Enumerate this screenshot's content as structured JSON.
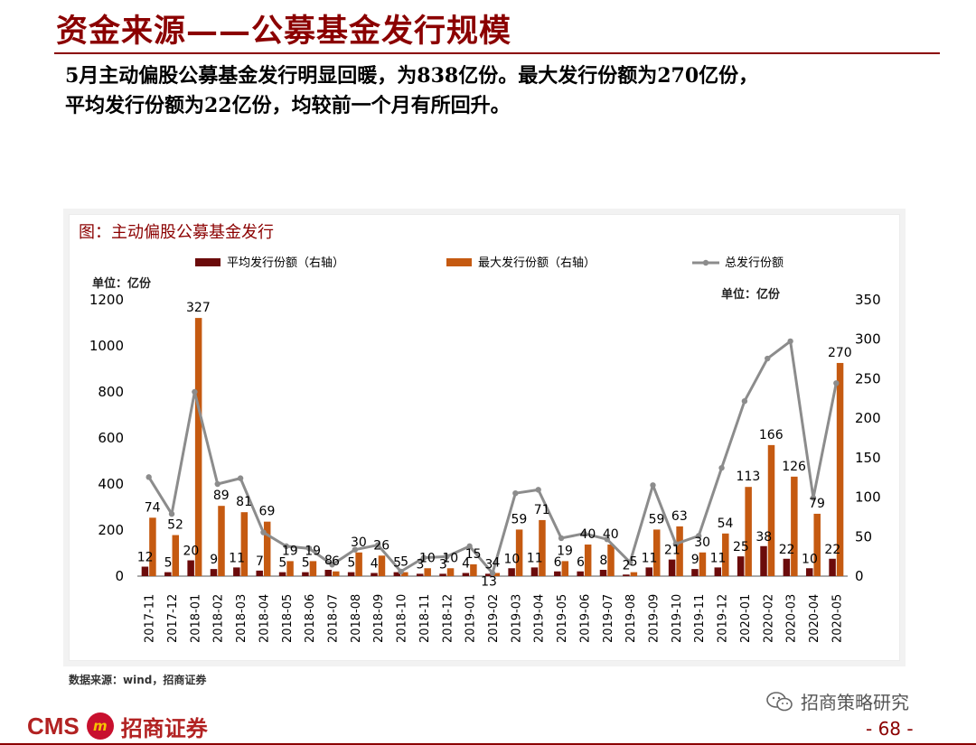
{
  "slide": {
    "title": "资金来源——公募基金发行规模",
    "summary_line1": "5月主动偏股公募基金发行明显回暖，为838亿份。最大发行份额为270亿份，",
    "summary_line2": "平均发行份额为22亿份，均较前一个月有所回升。"
  },
  "chart_data": {
    "type": "bar",
    "title": "图：主动偏股公募基金发行",
    "left_unit_label": "单位：亿份",
    "right_unit_label": "单位：亿份",
    "legend_placement": "top",
    "grid": false,
    "y_left_ticks": [
      "0",
      "200",
      "400",
      "600",
      "800",
      "1000",
      "1200"
    ],
    "y_right_ticks": [
      "0",
      "50",
      "100",
      "150",
      "200",
      "250",
      "300",
      "350"
    ],
    "y_left_range": [
      0,
      1200
    ],
    "y_right_range": [
      0,
      350
    ],
    "categories": [
      "2017-11",
      "2017-12",
      "2018-01",
      "2018-02",
      "2018-03",
      "2018-04",
      "2018-05",
      "2018-06",
      "2018-07",
      "2018-08",
      "2018-09",
      "2018-10",
      "2018-11",
      "2018-12",
      "2019-01",
      "2019-02",
      "2019-03",
      "2019-04",
      "2019-05",
      "2019-06",
      "2019-07",
      "2019-08",
      "2019-09",
      "2019-10",
      "2019-11",
      "2019-12",
      "2020-01",
      "2020-02",
      "2020-03",
      "2020-04",
      "2020-05"
    ],
    "series": [
      {
        "name": "平均发行份额（右轴）",
        "kind": "bar",
        "axis": "right",
        "color": "#6b0b0b",
        "values": [
          12,
          5,
          20,
          9,
          11,
          7,
          5,
          5,
          8,
          5,
          4,
          5,
          3,
          3,
          4,
          3,
          10,
          11,
          6,
          6,
          8,
          2,
          11,
          21,
          9,
          11,
          25,
          38,
          22,
          10,
          22
        ]
      },
      {
        "name": "最大发行份额（右轴）",
        "kind": "bar",
        "axis": "right",
        "color": "#c55a11",
        "values": [
          74,
          52,
          327,
          89,
          81,
          69,
          19,
          19,
          6,
          30,
          26,
          5,
          10,
          10,
          15,
          4,
          59,
          71,
          19,
          40,
          40,
          5,
          59,
          63,
          30,
          54,
          113,
          166,
          126,
          79,
          270
        ]
      },
      {
        "name": "总发行份额",
        "kind": "line",
        "axis": "left",
        "color": "#8c8c8c",
        "values": [
          430,
          270,
          800,
          400,
          425,
          190,
          130,
          120,
          50,
          115,
          135,
          20,
          80,
          85,
          130,
          13,
          360,
          375,
          165,
          185,
          160,
          60,
          395,
          140,
          175,
          470,
          760,
          945,
          1020,
          340,
          838
        ]
      }
    ],
    "line_value_labels": {
      "indices": [
        15
      ],
      "values": [
        "13"
      ]
    }
  },
  "footer": {
    "source": "数据来源：wind，招商证券",
    "brand_cms": "CMS",
    "brand_logo_text": "m",
    "brand_name": "招商证券",
    "wechat_text": "招商策略研究",
    "page_number": "- 68 -"
  }
}
